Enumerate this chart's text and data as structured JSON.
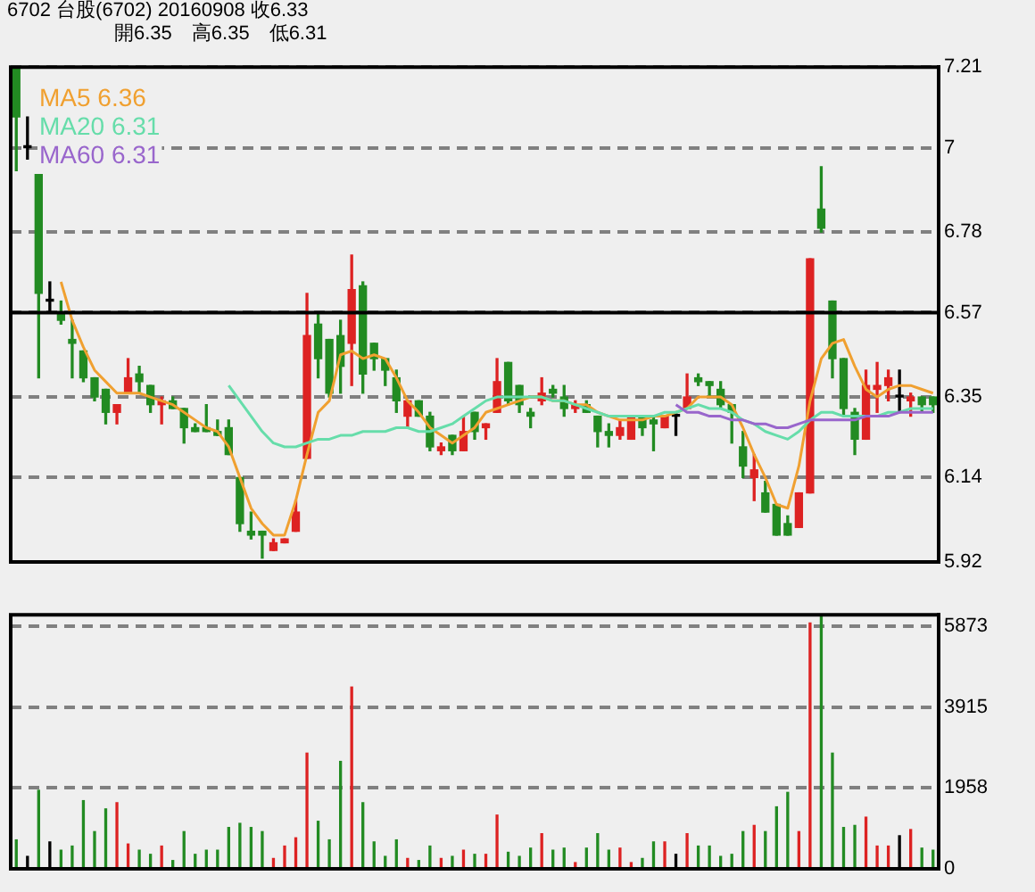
{
  "chart_data": [
    {
      "type": "candlestick",
      "title": "6702  台股(6702) 20160908  收6.33",
      "subtitle": "開6.35　高6.35　低6.31",
      "categories": [
        null,
        null,
        null,
        null,
        null,
        null,
        null,
        null,
        null,
        null,
        null,
        null,
        null,
        null,
        null,
        null,
        null,
        null,
        null,
        null,
        null,
        null,
        null,
        null,
        null,
        null,
        null,
        null,
        null,
        null,
        null,
        null,
        null,
        null,
        null,
        null,
        null,
        null,
        null,
        null,
        null,
        null,
        null,
        null,
        null,
        null,
        null,
        null,
        null,
        null,
        null,
        null,
        null,
        null,
        null,
        null,
        null,
        null,
        null,
        null,
        null,
        null,
        null,
        null,
        null,
        null,
        null,
        null,
        null,
        null,
        null,
        null,
        null,
        null,
        null,
        null,
        null,
        null,
        null,
        null,
        null,
        null,
        null
      ],
      "ohlc": [
        [
          7.21,
          7.21,
          6.94,
          7.08
        ],
        [
          7.0,
          7.08,
          6.97,
          7.0
        ],
        [
          6.93,
          6.93,
          6.4,
          6.62
        ],
        [
          6.6,
          6.65,
          6.57,
          6.6
        ],
        [
          6.57,
          6.6,
          6.54,
          6.55
        ],
        [
          6.5,
          6.55,
          6.4,
          6.49
        ],
        [
          6.47,
          6.47,
          6.39,
          6.4
        ],
        [
          6.4,
          6.4,
          6.34,
          6.35
        ],
        [
          6.37,
          6.37,
          6.28,
          6.31
        ],
        [
          6.31,
          6.33,
          6.28,
          6.33
        ],
        [
          6.36,
          6.45,
          6.36,
          6.4
        ],
        [
          6.41,
          6.43,
          6.36,
          6.39
        ],
        [
          6.38,
          6.38,
          6.31,
          6.33
        ],
        [
          6.33,
          6.35,
          6.28,
          6.34
        ],
        [
          6.34,
          6.35,
          6.32,
          6.32
        ],
        [
          6.32,
          6.32,
          6.23,
          6.27
        ],
        [
          6.27,
          6.28,
          6.26,
          6.26
        ],
        [
          6.27,
          6.33,
          6.26,
          6.26
        ],
        [
          6.26,
          6.29,
          6.25,
          6.25
        ],
        [
          6.27,
          6.29,
          6.2,
          6.2
        ],
        [
          6.14,
          6.14,
          6.0,
          6.02
        ],
        [
          6.0,
          6.05,
          5.98,
          5.99
        ],
        [
          6.0,
          6.0,
          5.93,
          5.99
        ],
        [
          5.95,
          5.98,
          5.95,
          5.97
        ],
        [
          5.97,
          5.98,
          5.97,
          5.98
        ],
        [
          6.0,
          6.08,
          6.0,
          6.05
        ],
        [
          6.19,
          6.62,
          6.19,
          6.51
        ],
        [
          6.54,
          6.57,
          6.4,
          6.45
        ],
        [
          6.5,
          6.5,
          6.35,
          6.36
        ],
        [
          6.51,
          6.55,
          6.36,
          6.43
        ],
        [
          6.49,
          6.72,
          6.38,
          6.63
        ],
        [
          6.64,
          6.65,
          6.36,
          6.41
        ],
        [
          6.49,
          6.49,
          6.42,
          6.45
        ],
        [
          6.45,
          6.45,
          6.38,
          6.42
        ],
        [
          6.4,
          6.42,
          6.31,
          6.34
        ],
        [
          6.3,
          6.34,
          6.27,
          6.34
        ],
        [
          6.34,
          6.34,
          6.3,
          6.3
        ],
        [
          6.3,
          6.31,
          6.21,
          6.22
        ],
        [
          6.21,
          6.23,
          6.2,
          6.22
        ],
        [
          6.25,
          6.25,
          6.2,
          6.21
        ],
        [
          6.21,
          6.3,
          6.21,
          6.26
        ],
        [
          6.31,
          6.31,
          6.24,
          6.26
        ],
        [
          6.27,
          6.28,
          6.24,
          6.28
        ],
        [
          6.31,
          6.45,
          6.31,
          6.39
        ],
        [
          6.44,
          6.44,
          6.33,
          6.34
        ],
        [
          6.38,
          6.38,
          6.31,
          6.33
        ],
        [
          6.31,
          6.32,
          6.27,
          6.3
        ],
        [
          6.34,
          6.4,
          6.33,
          6.36
        ],
        [
          6.37,
          6.38,
          6.35,
          6.36
        ],
        [
          6.35,
          6.38,
          6.3,
          6.32
        ],
        [
          6.32,
          6.34,
          6.31,
          6.33
        ],
        [
          6.33,
          6.34,
          6.31,
          6.31
        ],
        [
          6.3,
          6.3,
          6.22,
          6.26
        ],
        [
          6.26,
          6.28,
          6.22,
          6.25
        ],
        [
          6.25,
          6.29,
          6.24,
          6.27
        ],
        [
          6.24,
          6.3,
          6.24,
          6.3
        ],
        [
          6.3,
          6.3,
          6.25,
          6.27
        ],
        [
          6.29,
          6.3,
          6.21,
          6.28
        ],
        [
          6.27,
          6.3,
          6.27,
          6.3
        ],
        [
          6.3,
          6.31,
          6.25,
          6.3
        ],
        [
          6.32,
          6.41,
          6.32,
          6.35
        ],
        [
          6.4,
          6.41,
          6.38,
          6.39
        ],
        [
          6.39,
          6.39,
          6.35,
          6.38
        ],
        [
          6.37,
          6.39,
          6.32,
          6.33
        ],
        [
          6.33,
          6.33,
          6.23,
          6.31
        ],
        [
          6.22,
          6.26,
          6.14,
          6.17
        ],
        [
          6.14,
          6.2,
          6.08,
          6.16
        ],
        [
          6.1,
          6.13,
          6.05,
          6.05
        ],
        [
          6.07,
          6.07,
          5.99,
          5.99
        ],
        [
          6.02,
          6.04,
          5.99,
          5.99
        ],
        [
          6.01,
          6.1,
          6.01,
          6.1
        ],
        [
          6.1,
          6.71,
          6.1,
          6.71
        ],
        [
          6.84,
          6.95,
          6.78,
          6.79
        ],
        [
          6.6,
          6.6,
          6.4,
          6.45
        ],
        [
          6.45,
          6.45,
          6.3,
          6.32
        ],
        [
          6.31,
          6.32,
          6.2,
          6.24
        ],
        [
          6.24,
          6.42,
          6.24,
          6.38
        ],
        [
          6.37,
          6.44,
          6.31,
          6.38
        ],
        [
          6.38,
          6.42,
          6.34,
          6.4
        ],
        [
          6.35,
          6.42,
          6.31,
          6.35
        ],
        [
          6.34,
          6.36,
          6.3,
          6.35
        ],
        [
          6.35,
          6.35,
          6.31,
          6.33
        ],
        [
          6.35,
          6.35,
          6.31,
          6.33
        ]
      ],
      "colors": [
        "#228b22",
        "#000000",
        "#228b22",
        "#000000",
        "#228b22",
        "#228b22",
        "#228b22",
        "#228b22",
        "#228b22",
        "#dd2222",
        "#dd2222",
        "#228b22",
        "#228b22",
        "#dd2222",
        "#228b22",
        "#228b22",
        "#228b22",
        "#228b22",
        "#228b22",
        "#228b22",
        "#228b22",
        "#228b22",
        "#228b22",
        "#dd2222",
        "#dd2222",
        "#dd2222",
        "#dd2222",
        "#228b22",
        "#228b22",
        "#228b22",
        "#dd2222",
        "#228b22",
        "#228b22",
        "#228b22",
        "#228b22",
        "#dd2222",
        "#228b22",
        "#228b22",
        "#dd2222",
        "#228b22",
        "#dd2222",
        "#228b22",
        "#dd2222",
        "#dd2222",
        "#228b22",
        "#228b22",
        "#228b22",
        "#dd2222",
        "#228b22",
        "#228b22",
        "#dd2222",
        "#228b22",
        "#228b22",
        "#228b22",
        "#dd2222",
        "#dd2222",
        "#228b22",
        "#228b22",
        "#dd2222",
        "#000000",
        "#dd2222",
        "#228b22",
        "#228b22",
        "#228b22",
        "#228b22",
        "#228b22",
        "#dd2222",
        "#228b22",
        "#228b22",
        "#228b22",
        "#dd2222",
        "#dd2222",
        "#228b22",
        "#228b22",
        "#228b22",
        "#228b22",
        "#dd2222",
        "#dd2222",
        "#dd2222",
        "#000000",
        "#dd2222",
        "#228b22",
        "#228b22"
      ],
      "series": [
        {
          "name": "MA5 6.36",
          "type": "line",
          "color": "#f0a030",
          "values": [
            null,
            null,
            null,
            null,
            6.65,
            6.55,
            6.48,
            6.42,
            6.39,
            6.36,
            6.36,
            6.36,
            6.35,
            6.34,
            6.33,
            6.31,
            6.29,
            6.27,
            6.26,
            6.22,
            6.14,
            6.06,
            6.02,
            5.99,
            5.99,
            6.08,
            6.2,
            6.31,
            6.34,
            6.46,
            6.47,
            6.45,
            6.46,
            6.45,
            6.4,
            6.34,
            6.31,
            6.27,
            6.25,
            6.23,
            6.25,
            6.27,
            6.31,
            6.32,
            6.33,
            6.34,
            6.35,
            6.35,
            6.34,
            6.34,
            6.33,
            6.33,
            6.31,
            6.3,
            6.29,
            6.29,
            6.29,
            6.3,
            6.3,
            6.31,
            6.32,
            6.35,
            6.35,
            6.35,
            6.33,
            6.27,
            6.2,
            6.14,
            6.07,
            6.06,
            6.17,
            6.34,
            6.45,
            6.49,
            6.5,
            6.43,
            6.37,
            6.35,
            6.37,
            6.38,
            6.38,
            6.37,
            6.36
          ]
        },
        {
          "name": "MA20 6.31",
          "type": "line",
          "color": "#66ddaa",
          "values": [
            null,
            null,
            null,
            null,
            null,
            null,
            null,
            null,
            null,
            null,
            null,
            null,
            null,
            null,
            null,
            null,
            null,
            null,
            null,
            6.38,
            6.34,
            6.3,
            6.26,
            6.23,
            6.22,
            6.22,
            6.23,
            6.24,
            6.24,
            6.25,
            6.25,
            6.26,
            6.26,
            6.26,
            6.27,
            6.27,
            6.26,
            6.26,
            6.27,
            6.28,
            6.3,
            6.32,
            6.34,
            6.35,
            6.35,
            6.35,
            6.35,
            6.35,
            6.34,
            6.34,
            6.33,
            6.32,
            6.31,
            6.3,
            6.3,
            6.3,
            6.3,
            6.3,
            6.31,
            6.31,
            6.32,
            6.33,
            6.32,
            6.32,
            6.31,
            6.29,
            6.28,
            6.26,
            6.25,
            6.24,
            6.26,
            6.29,
            6.31,
            6.31,
            6.3,
            6.3,
            6.3,
            6.3,
            6.31,
            6.31,
            6.32,
            6.32,
            6.32
          ]
        },
        {
          "name": "MA60 6.31",
          "type": "line",
          "color": "#9966cc",
          "values": [
            null,
            null,
            null,
            null,
            null,
            null,
            null,
            null,
            null,
            null,
            null,
            null,
            null,
            null,
            null,
            null,
            null,
            null,
            null,
            null,
            null,
            null,
            null,
            null,
            null,
            null,
            null,
            null,
            null,
            null,
            null,
            null,
            null,
            null,
            null,
            null,
            null,
            null,
            null,
            null,
            null,
            null,
            null,
            null,
            null,
            null,
            null,
            null,
            null,
            null,
            null,
            null,
            null,
            null,
            null,
            null,
            null,
            null,
            null,
            6.33,
            6.31,
            6.31,
            6.3,
            6.3,
            6.29,
            6.29,
            6.28,
            6.28,
            6.27,
            6.27,
            6.28,
            6.29,
            6.29,
            6.29,
            6.29,
            6.29,
            6.3,
            6.3,
            6.3,
            6.31,
            6.31,
            6.31,
            6.31
          ]
        }
      ],
      "ylim": [
        5.92,
        7.21
      ],
      "yticks": [
        5.92,
        6.14,
        6.35,
        6.57,
        6.78,
        7.0,
        7.21
      ],
      "ref_lines": [
        {
          "axis": "y",
          "value": 6.57,
          "color": "#000000",
          "line_style": "solid"
        }
      ],
      "grid": "y",
      "legend": "top left",
      "marker": "none",
      "tick_labels": "y"
    },
    {
      "type": "bar",
      "categories": [
        null,
        null,
        null,
        null,
        null,
        null,
        null,
        null,
        null,
        null,
        null,
        null,
        null,
        null,
        null,
        null,
        null,
        null,
        null,
        null,
        null,
        null,
        null,
        null,
        null,
        null,
        null,
        null,
        null,
        null,
        null,
        null,
        null,
        null,
        null,
        null,
        null,
        null,
        null,
        null,
        null,
        null,
        null,
        null,
        null,
        null,
        null,
        null,
        null,
        null,
        null,
        null,
        null,
        null,
        null,
        null,
        null,
        null,
        null,
        null,
        null,
        null,
        null,
        null,
        null,
        null,
        null,
        null,
        null,
        null,
        null,
        null,
        null,
        null,
        null,
        null,
        null,
        null,
        null,
        null,
        null,
        null,
        null
      ],
      "values": [
        700,
        300,
        1900,
        650,
        450,
        550,
        1650,
        900,
        1450,
        1600,
        600,
        450,
        350,
        550,
        200,
        900,
        350,
        450,
        450,
        1000,
        1100,
        1000,
        900,
        250,
        550,
        750,
        2800,
        1150,
        700,
        2600,
        4400,
        1600,
        650,
        300,
        700,
        250,
        200,
        550,
        250,
        300,
        450,
        350,
        350,
        1300,
        400,
        300,
        500,
        850,
        450,
        500,
        150,
        500,
        850,
        450,
        500,
        150,
        250,
        650,
        650,
        350,
        850,
        550,
        550,
        300,
        350,
        900,
        1050,
        900,
        1500,
        1850,
        900,
        5950,
        6150,
        2800,
        1000,
        1050,
        1250,
        550,
        550,
        800,
        950,
        500,
        450
      ],
      "colors": [
        "#228b22",
        "#000000",
        "#228b22",
        "#000000",
        "#228b22",
        "#228b22",
        "#228b22",
        "#228b22",
        "#228b22",
        "#dd2222",
        "#dd2222",
        "#228b22",
        "#228b22",
        "#dd2222",
        "#228b22",
        "#228b22",
        "#228b22",
        "#228b22",
        "#228b22",
        "#228b22",
        "#228b22",
        "#228b22",
        "#228b22",
        "#dd2222",
        "#dd2222",
        "#dd2222",
        "#dd2222",
        "#228b22",
        "#228b22",
        "#228b22",
        "#dd2222",
        "#228b22",
        "#228b22",
        "#228b22",
        "#228b22",
        "#dd2222",
        "#228b22",
        "#228b22",
        "#dd2222",
        "#228b22",
        "#dd2222",
        "#228b22",
        "#dd2222",
        "#dd2222",
        "#228b22",
        "#228b22",
        "#228b22",
        "#dd2222",
        "#228b22",
        "#228b22",
        "#dd2222",
        "#228b22",
        "#228b22",
        "#228b22",
        "#dd2222",
        "#dd2222",
        "#228b22",
        "#228b22",
        "#dd2222",
        "#000000",
        "#dd2222",
        "#228b22",
        "#228b22",
        "#228b22",
        "#228b22",
        "#228b22",
        "#dd2222",
        "#228b22",
        "#228b22",
        "#228b22",
        "#dd2222",
        "#dd2222",
        "#228b22",
        "#228b22",
        "#228b22",
        "#228b22",
        "#dd2222",
        "#dd2222",
        "#dd2222",
        "#000000",
        "#dd2222",
        "#228b22",
        "#228b22"
      ],
      "ylim": [
        0,
        6150
      ],
      "yticks": [
        0,
        1958,
        3915,
        5873
      ],
      "grid": "y",
      "tick_labels": "y"
    }
  ]
}
